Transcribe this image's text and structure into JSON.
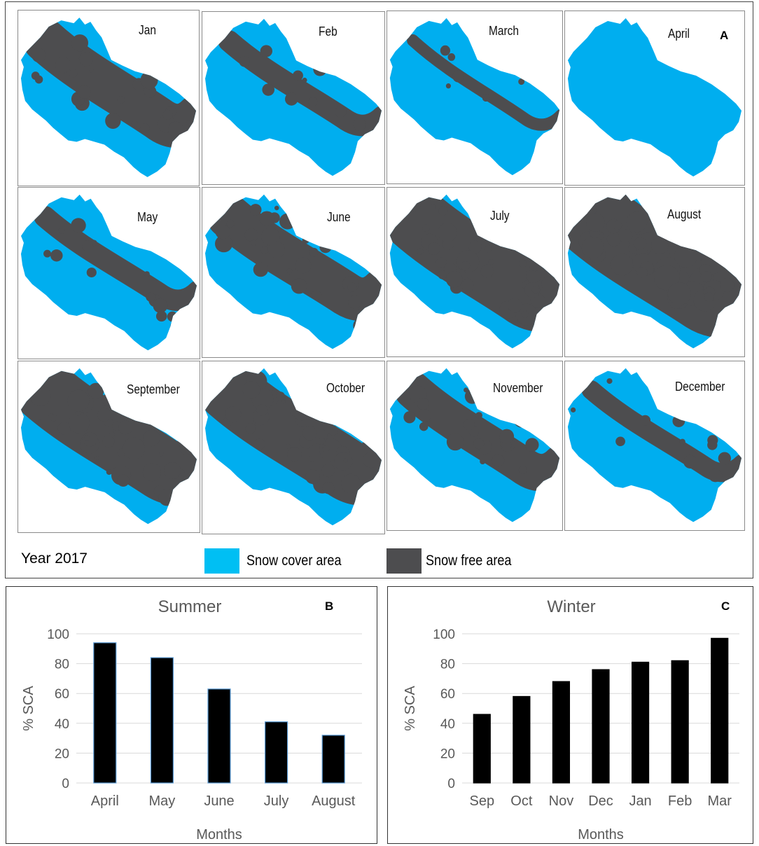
{
  "panel_a": {
    "letter": "A",
    "year_label": "Year 2017",
    "legend": [
      {
        "label": "Snow cover area",
        "color": "#00aeef"
      },
      {
        "label": "Snow free area",
        "color": "#4d4d4f"
      }
    ],
    "snow_color": "#00aeef",
    "free_color": "#4d4d4f",
    "maps": [
      {
        "label": "Jan",
        "snow_free_level": 0.35
      },
      {
        "label": "Feb",
        "snow_free_level": 0.14
      },
      {
        "label": "March",
        "snow_free_level": 0.05
      },
      {
        "label": "April",
        "snow_free_level": 0.0
      },
      {
        "label": "May",
        "snow_free_level": 0.14
      },
      {
        "label": "June",
        "snow_free_level": 0.36
      },
      {
        "label": "July",
        "snow_free_level": 0.58
      },
      {
        "label": "August",
        "snow_free_level": 0.7
      },
      {
        "label": "September",
        "snow_free_level": 0.54
      },
      {
        "label": "October",
        "snow_free_level": 0.52
      },
      {
        "label": "November",
        "snow_free_level": 0.3
      },
      {
        "label": "December",
        "snow_free_level": 0.12
      }
    ]
  },
  "chart_data": [
    {
      "type": "bar",
      "panel_letter": "B",
      "title": "Summer",
      "xlabel": "Months",
      "ylabel": "% SCA",
      "ylim": [
        0,
        100
      ],
      "yticks": [
        0,
        20,
        40,
        60,
        80,
        100
      ],
      "grid": true,
      "categories": [
        "April",
        "May",
        "June",
        "July",
        "August"
      ],
      "values": [
        94,
        84,
        63,
        41,
        32
      ],
      "bar_color": "#000000",
      "bar_edge_color": "#5b9bd5"
    },
    {
      "type": "bar",
      "panel_letter": "C",
      "title": "Winter",
      "xlabel": "Months",
      "ylabel": "% SCA",
      "ylim": [
        0,
        100
      ],
      "yticks": [
        0,
        20,
        40,
        60,
        80,
        100
      ],
      "grid": true,
      "categories": [
        "Sep",
        "Oct",
        "Nov",
        "Dec",
        "Jan",
        "Feb",
        "Mar"
      ],
      "values": [
        46,
        58,
        68,
        76,
        81,
        82,
        97
      ],
      "bar_color": "#000000",
      "bar_edge_color": "#000000"
    }
  ]
}
